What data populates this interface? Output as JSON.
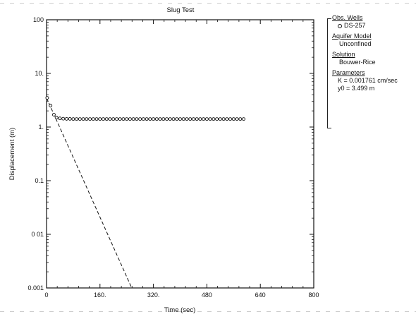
{
  "chart_data": {
    "type": "scatter",
    "title": "Slug Test",
    "xlabel": "Time (sec)",
    "ylabel": "Displacement (m)",
    "xlim": [
      0,
      800
    ],
    "ylim": [
      0.001,
      100
    ],
    "yscale": "log",
    "x_ticks": [
      0,
      160,
      320,
      480,
      640,
      800
    ],
    "x_tick_labels": [
      "0",
      "160.",
      "320.",
      "480",
      "640",
      "800"
    ],
    "y_ticks": [
      100,
      10,
      1,
      0.1,
      0.01,
      0.001
    ],
    "y_tick_labels": [
      "100",
      "10.",
      "1.",
      "0.1",
      "0 01",
      "0.001"
    ],
    "grid": false,
    "legend_position": "right",
    "series": [
      {
        "name": "DS-257",
        "mode": "markers",
        "x": [
          2,
          12,
          22,
          30,
          40,
          50,
          60,
          70,
          80,
          90,
          100,
          110,
          120,
          130,
          140,
          150,
          160,
          170,
          180,
          190,
          200,
          210,
          220,
          230,
          240,
          250,
          260,
          270,
          280,
          290,
          300,
          310,
          320,
          330,
          340,
          350,
          360,
          370,
          380,
          390,
          400,
          410,
          420,
          430,
          440,
          450,
          460,
          470,
          480,
          490,
          500,
          510,
          520,
          530,
          540,
          550,
          560,
          570,
          580,
          590
        ],
        "y": [
          3.5,
          2.5,
          1.7,
          1.5,
          1.45,
          1.43,
          1.42,
          1.42,
          1.41,
          1.41,
          1.41,
          1.41,
          1.41,
          1.41,
          1.41,
          1.41,
          1.41,
          1.41,
          1.41,
          1.41,
          1.41,
          1.41,
          1.41,
          1.41,
          1.41,
          1.41,
          1.41,
          1.41,
          1.41,
          1.41,
          1.41,
          1.41,
          1.41,
          1.41,
          1.41,
          1.41,
          1.41,
          1.41,
          1.41,
          1.41,
          1.41,
          1.41,
          1.41,
          1.41,
          1.41,
          1.41,
          1.41,
          1.41,
          1.41,
          1.41,
          1.41,
          1.41,
          1.41,
          1.41,
          1.41,
          1.41,
          1.41,
          1.41,
          1.41,
          1.41
        ]
      },
      {
        "name": "Bouwer-Rice fit",
        "mode": "dashed-line",
        "x": [
          0,
          255
        ],
        "y": [
          3.499,
          0.001
        ]
      }
    ]
  },
  "legend": {
    "obs_wells_heading": "Obs. Wells",
    "obs_well_name": "DS-257",
    "aquifer_model_heading": "Aquifer Model",
    "aquifer_model_value": "Unconfined",
    "solution_heading": "Solution",
    "solution_value": "Bouwer-Rice",
    "parameters_heading": "Parameters",
    "param_k": "K  = 0.001761 cm/sec",
    "param_y0": "y0 = 3.499 m"
  }
}
